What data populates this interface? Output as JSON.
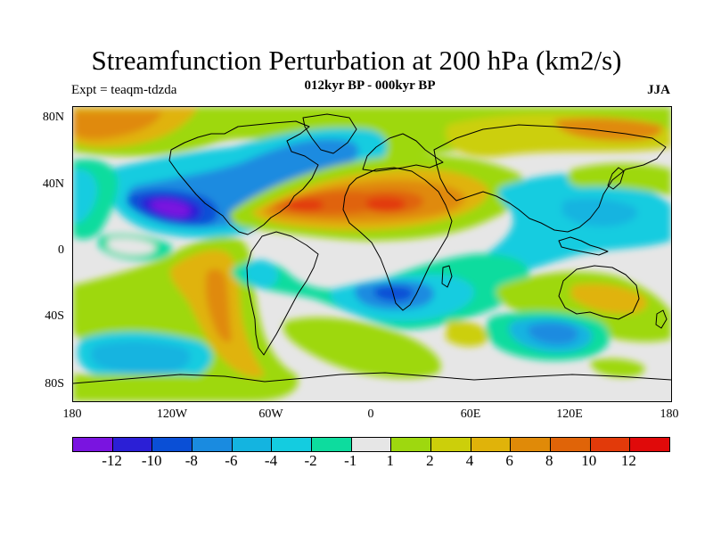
{
  "title": "Streamfunction Perturbation at 200 hPa (km2/s)",
  "subtitle": "012kyr BP - 000kyr BP",
  "left_label": "Expt = teaqm-tdzda",
  "right_label": "JJA",
  "latitude_labels": [
    "80N",
    "40N",
    "0",
    "40S",
    "80S"
  ],
  "longitude_labels": [
    "180",
    "120W",
    "60W",
    "0",
    "60E",
    "120E",
    "180"
  ],
  "colorbar": {
    "colors": [
      "#7a14e0",
      "#2b1fd6",
      "#0a4fd6",
      "#1a8be0",
      "#14b4e0",
      "#14cce0",
      "#0ddc9e",
      "#e6e6e6",
      "#9ed80f",
      "#cccf0a",
      "#e0b30a",
      "#e08a08",
      "#e06408",
      "#e23a0a",
      "#e00a0a"
    ],
    "labels": [
      "-12",
      "-10",
      "-8",
      "-6",
      "-4",
      "-2",
      "-1",
      "1",
      "2",
      "4",
      "6",
      "8",
      "10",
      "12"
    ]
  }
}
